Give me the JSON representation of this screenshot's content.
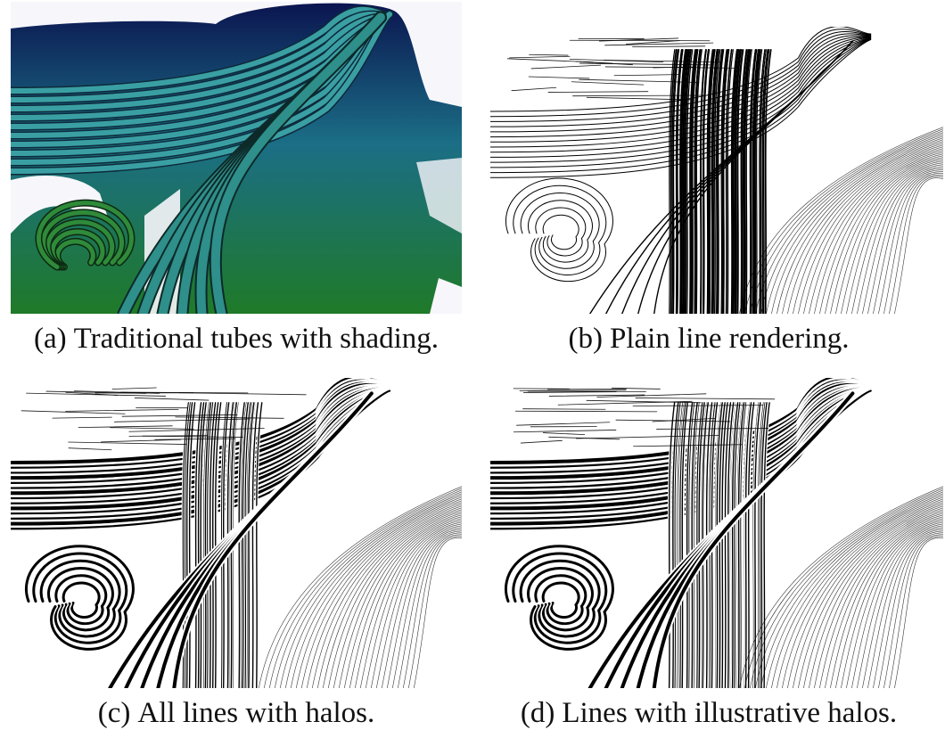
{
  "figure": {
    "panels": [
      {
        "label": "(a)",
        "caption": "Traditional tubes with shading.",
        "style": "shaded-tubes",
        "colors": {
          "top": "#0b1a4e",
          "middle": "#1e7e86",
          "bottom": "#1f7a2a"
        }
      },
      {
        "label": "(b)",
        "caption": "Plain line rendering.",
        "style": "plain-lines",
        "colors": {
          "line": "#000000"
        }
      },
      {
        "label": "(c)",
        "caption": "All lines with halos.",
        "style": "haloed-lines",
        "colors": {
          "line": "#000000",
          "halo": "#ffffff"
        }
      },
      {
        "label": "(d)",
        "caption": "Lines with illustrative halos.",
        "style": "illustrative-halos",
        "colors": {
          "line": "#000000",
          "halo": "#ffffff"
        }
      }
    ]
  }
}
